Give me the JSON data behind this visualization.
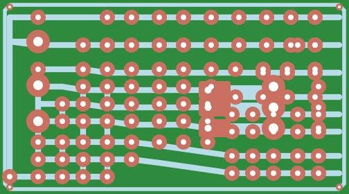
{
  "bg_color": "#2e8b3e",
  "trace_color": "#b8dce8",
  "pad_color": "#c97060",
  "hole_color": "#ffffff",
  "figsize": [
    5.04,
    2.8
  ],
  "dpi": 100
}
